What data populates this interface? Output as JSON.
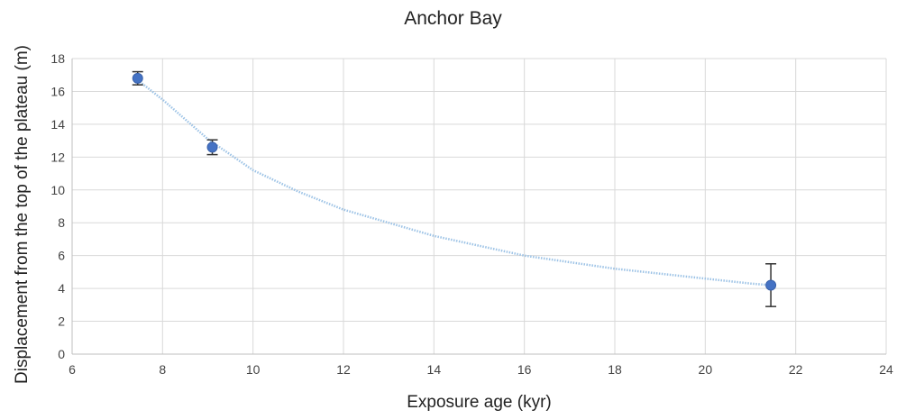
{
  "chart_data": {
    "type": "scatter",
    "title": "Anchor Bay",
    "xlabel": "Exposure age (kyr)",
    "ylabel": "Displacement from the top of the plateau (m)",
    "xlim": [
      6,
      24
    ],
    "ylim": [
      0,
      18
    ],
    "xticks": [
      6,
      8,
      10,
      12,
      14,
      16,
      18,
      20,
      22,
      24
    ],
    "yticks": [
      0,
      2,
      4,
      6,
      8,
      10,
      12,
      14,
      16,
      18
    ],
    "grid": true,
    "points": [
      {
        "x": 7.45,
        "y": 16.8,
        "err": 0.4
      },
      {
        "x": 9.1,
        "y": 12.6,
        "err": 0.45
      },
      {
        "x": 21.45,
        "y": 4.2,
        "err": 1.3
      }
    ],
    "trendline": {
      "style": "dotted",
      "x": [
        7.4,
        8,
        9,
        10,
        11,
        12,
        13,
        14,
        15,
        16,
        17,
        18,
        19,
        20,
        21,
        21.45
      ],
      "y": [
        16.8,
        15.5,
        13.1,
        11.2,
        9.9,
        8.8,
        8.0,
        7.2,
        6.6,
        6.0,
        5.6,
        5.2,
        4.9,
        4.6,
        4.3,
        4.2
      ]
    },
    "colors": {
      "marker": "#4472c4",
      "trendline": "#9dc3e6",
      "errorbar": "#333333",
      "grid": "#d9d9d9",
      "axis": "#bfbfbf"
    }
  }
}
